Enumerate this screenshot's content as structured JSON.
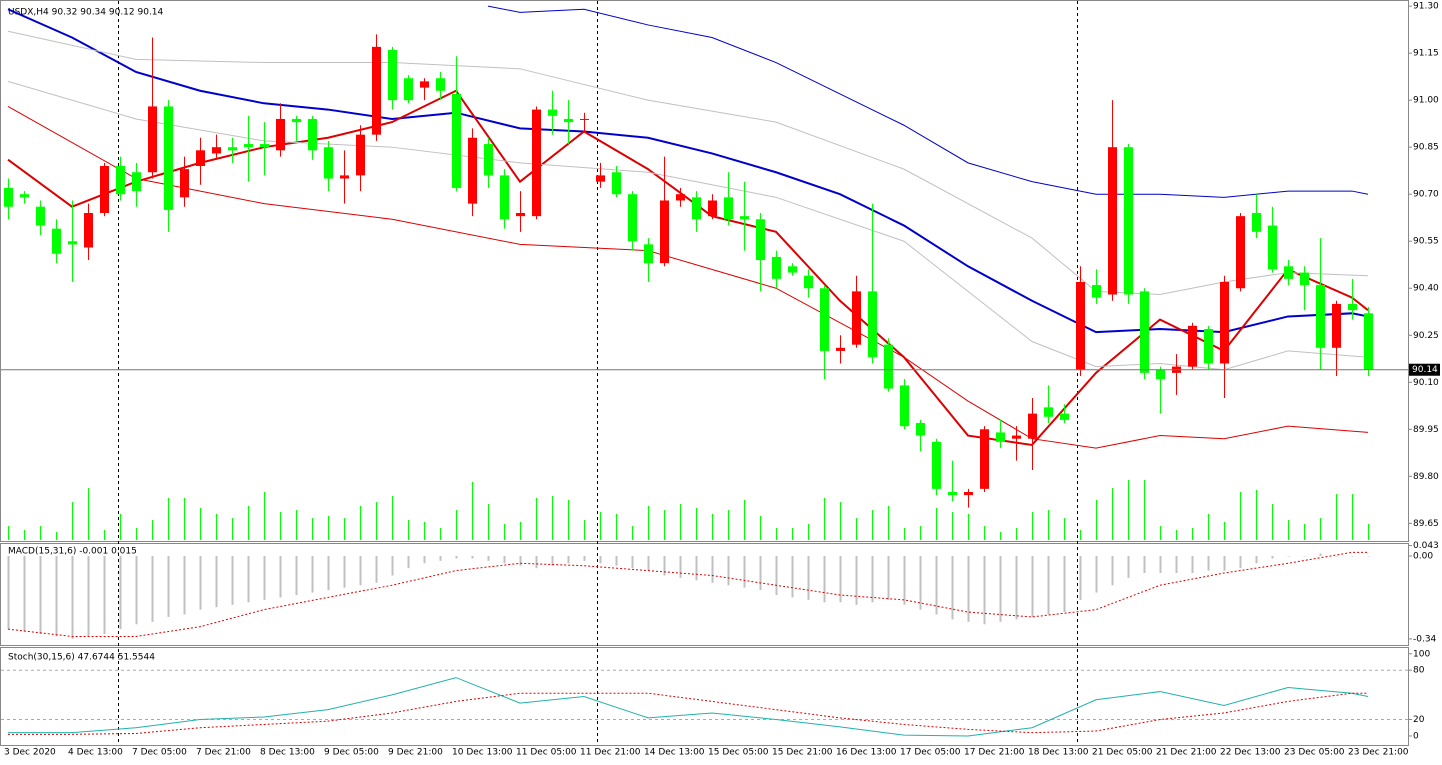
{
  "chart_data": [
    {
      "type": "candlestick",
      "title": "USDX,H4 90.32 90.34 90.12 90.14",
      "categories": [
        "3 Dec 2020",
        null,
        null,
        null,
        "4 Dec 13:00",
        null,
        null,
        null,
        "7 Dec 05:00",
        null,
        null,
        null,
        "7 Dec 21:00",
        null,
        null,
        null,
        "8 Dec 13:00",
        null,
        null,
        null,
        "9 Dec 05:00",
        null,
        null,
        null,
        "9 Dec 21:00",
        null,
        null,
        null,
        "10 Dec 13:00",
        null,
        null,
        null,
        "11 Dec 05:00",
        null,
        null,
        null,
        "11 Dec 21:00",
        null,
        null,
        null,
        "14 Dec 13:00",
        null,
        null,
        null,
        "15 Dec 05:00",
        null,
        null,
        null,
        "15 Dec 21:00",
        null,
        null,
        null,
        "16 Dec 13:00",
        null,
        null,
        null,
        "17 Dec 05:00",
        null,
        null,
        null,
        "17 Dec 21:00",
        null,
        null,
        null,
        "18 Dec 13:00",
        null,
        null,
        null,
        "21 Dec 05:00",
        null,
        null,
        null,
        "21 Dec 21:00",
        null,
        null,
        null,
        "22 Dec 13:00",
        null,
        null,
        null,
        "23 Dec 05:00",
        null,
        null,
        null,
        "23 Dec 21:00",
        null
      ],
      "candles": [
        [
          90.72,
          90.75,
          90.62,
          90.66
        ],
        [
          90.7,
          90.71,
          90.67,
          90.69
        ],
        [
          90.66,
          90.68,
          90.57,
          90.6
        ],
        [
          90.59,
          90.62,
          90.48,
          90.51
        ],
        [
          90.55,
          90.68,
          90.42,
          90.54
        ],
        [
          90.53,
          90.67,
          90.49,
          90.64
        ],
        [
          90.64,
          90.8,
          90.63,
          90.79
        ],
        [
          90.79,
          90.82,
          90.68,
          90.7
        ],
        [
          90.77,
          90.8,
          90.66,
          90.71
        ],
        [
          90.77,
          91.2,
          90.75,
          90.98
        ],
        [
          90.98,
          91.0,
          90.58,
          90.65
        ],
        [
          90.69,
          90.82,
          90.66,
          90.78
        ],
        [
          90.79,
          90.88,
          90.73,
          90.84
        ],
        [
          90.83,
          90.89,
          90.81,
          90.85
        ],
        [
          90.85,
          90.88,
          90.8,
          90.84
        ],
        [
          90.86,
          90.95,
          90.74,
          90.85
        ],
        [
          90.86,
          90.93,
          90.76,
          90.85
        ],
        [
          90.84,
          90.99,
          90.82,
          90.94
        ],
        [
          90.94,
          90.95,
          90.87,
          90.93
        ],
        [
          90.94,
          90.95,
          90.81,
          90.84
        ],
        [
          90.85,
          90.87,
          90.71,
          90.75
        ],
        [
          90.75,
          90.84,
          90.67,
          90.76
        ],
        [
          90.76,
          90.92,
          90.71,
          90.89
        ],
        [
          90.89,
          91.21,
          90.87,
          91.17
        ],
        [
          91.16,
          91.17,
          90.97,
          91.0
        ],
        [
          91.07,
          91.08,
          90.99,
          91.0
        ],
        [
          91.04,
          91.07,
          91.0,
          91.06
        ],
        [
          91.07,
          91.09,
          91.0,
          91.03
        ],
        [
          91.02,
          91.14,
          90.71,
          90.72
        ],
        [
          90.67,
          90.91,
          90.63,
          90.88
        ],
        [
          90.86,
          90.88,
          90.72,
          90.76
        ],
        [
          90.76,
          90.78,
          90.59,
          90.62
        ],
        [
          90.63,
          90.71,
          90.58,
          90.64
        ],
        [
          90.63,
          90.98,
          90.62,
          90.97
        ],
        [
          90.97,
          91.03,
          90.89,
          90.95
        ],
        [
          90.94,
          91.0,
          90.86,
          90.93
        ],
        [
          90.94,
          90.96,
          90.9,
          90.94
        ],
        [
          90.74,
          90.8,
          90.72,
          90.76
        ],
        [
          90.77,
          90.79,
          90.69,
          90.7
        ],
        [
          90.7,
          90.71,
          90.52,
          90.55
        ],
        [
          90.54,
          90.56,
          90.42,
          90.48
        ],
        [
          90.48,
          90.82,
          90.47,
          90.68
        ],
        [
          90.68,
          90.72,
          90.66,
          90.7
        ],
        [
          90.69,
          90.71,
          90.58,
          90.62
        ],
        [
          90.63,
          90.7,
          90.62,
          90.68
        ],
        [
          90.69,
          90.77,
          90.6,
          90.62
        ],
        [
          90.63,
          90.74,
          90.52,
          90.62
        ],
        [
          90.62,
          90.64,
          90.39,
          90.49
        ],
        [
          90.5,
          90.52,
          90.4,
          90.43
        ],
        [
          90.47,
          90.48,
          90.44,
          90.45
        ],
        [
          90.44,
          90.46,
          90.37,
          90.4
        ],
        [
          90.4,
          90.41,
          90.11,
          90.2
        ],
        [
          90.2,
          90.25,
          90.16,
          90.21
        ],
        [
          90.22,
          90.44,
          90.21,
          90.39
        ],
        [
          90.39,
          90.67,
          90.16,
          90.18
        ],
        [
          90.22,
          90.24,
          90.07,
          90.08
        ],
        [
          90.09,
          90.11,
          89.95,
          89.96
        ],
        [
          89.97,
          89.98,
          89.88,
          89.93
        ],
        [
          89.91,
          89.92,
          89.74,
          89.76
        ],
        [
          89.75,
          89.85,
          89.72,
          89.74
        ],
        [
          89.74,
          89.76,
          89.7,
          89.75
        ],
        [
          89.76,
          89.96,
          89.75,
          89.95
        ],
        [
          89.94,
          89.98,
          89.89,
          89.91
        ],
        [
          89.92,
          89.96,
          89.85,
          89.93
        ],
        [
          89.92,
          90.05,
          89.82,
          90.0
        ],
        [
          90.02,
          90.09,
          89.97,
          89.99
        ],
        [
          90.0,
          90.03,
          89.97,
          89.98
        ],
        [
          90.14,
          90.47,
          90.12,
          90.42
        ],
        [
          90.41,
          90.46,
          90.35,
          90.37
        ],
        [
          90.38,
          91.0,
          90.36,
          90.85
        ],
        [
          90.85,
          90.86,
          90.35,
          90.38
        ],
        [
          90.39,
          90.4,
          90.11,
          90.13
        ],
        [
          90.14,
          90.15,
          90.0,
          90.11
        ],
        [
          90.13,
          90.19,
          90.06,
          90.15
        ],
        [
          90.15,
          90.29,
          90.14,
          90.28
        ],
        [
          90.27,
          90.28,
          90.14,
          90.16
        ],
        [
          90.16,
          90.44,
          90.05,
          90.42
        ],
        [
          90.4,
          90.64,
          90.39,
          90.63
        ],
        [
          90.64,
          90.7,
          90.56,
          90.58
        ],
        [
          90.6,
          90.66,
          90.45,
          90.46
        ],
        [
          90.47,
          90.49,
          90.41,
          90.43
        ],
        [
          90.45,
          90.47,
          90.33,
          90.41
        ],
        [
          90.41,
          90.56,
          90.14,
          90.21
        ],
        [
          90.21,
          90.36,
          90.12,
          90.35
        ],
        [
          90.35,
          90.43,
          90.3,
          90.33
        ],
        [
          90.32,
          90.34,
          90.12,
          90.14
        ]
      ],
      "up_color": "#ff0000",
      "down_color": "#00ff00",
      "volume": [
        14,
        10,
        14,
        8,
        38,
        52,
        10,
        26,
        12,
        20,
        42,
        42,
        32,
        26,
        22,
        34,
        48,
        28,
        30,
        22,
        24,
        22,
        34,
        38,
        44,
        20,
        18,
        12,
        30,
        58,
        36,
        16,
        18,
        42,
        44,
        40,
        20,
        28,
        26,
        14,
        34,
        30,
        36,
        32,
        26,
        30,
        40,
        24,
        12,
        12,
        16,
        42,
        38,
        22,
        30,
        34,
        12,
        14,
        32,
        28,
        26,
        14,
        8,
        12,
        28,
        30,
        22,
        10,
        40,
        52,
        60,
        60,
        14,
        10,
        12,
        26,
        18,
        48,
        50,
        36,
        20,
        16,
        22,
        46,
        46,
        16
      ],
      "volume_color": "#00ff00",
      "overlays": [
        {
          "color": "#0000cc",
          "x": [
            0,
            4,
            8,
            12,
            16,
            20,
            24,
            28,
            32,
            36,
            40,
            44,
            48,
            52,
            56,
            60,
            64,
            68,
            72,
            76,
            80,
            84,
            85
          ],
          "values": [
            91.29,
            91.2,
            91.09,
            91.03,
            90.99,
            90.97,
            90.94,
            90.96,
            90.91,
            90.9,
            90.88,
            90.83,
            90.77,
            90.7,
            90.6,
            90.47,
            90.36,
            90.26,
            90.27,
            90.26,
            90.31,
            90.32,
            90.31
          ]
        },
        {
          "color": "#dd0000",
          "x": [
            0,
            4,
            8,
            12,
            16,
            20,
            24,
            28,
            32,
            36,
            40,
            44,
            48,
            52,
            56,
            60,
            64,
            68,
            72,
            76,
            80,
            84,
            85
          ],
          "values": [
            90.81,
            90.66,
            90.74,
            90.8,
            90.85,
            90.88,
            90.93,
            91.03,
            90.74,
            90.9,
            90.78,
            90.63,
            90.58,
            90.36,
            90.18,
            89.93,
            89.9,
            90.13,
            90.3,
            90.2,
            90.46,
            90.37,
            90.33
          ]
        },
        {
          "color": "#0000cc",
          "x": [
            30,
            32,
            36,
            40,
            44,
            48,
            52,
            56,
            60,
            64,
            68,
            72,
            76,
            80,
            84,
            85
          ],
          "values": [
            91.3,
            91.28,
            91.29,
            91.24,
            91.2,
            91.12,
            91.02,
            90.92,
            90.8,
            90.74,
            90.7,
            90.7,
            90.69,
            90.71,
            90.71,
            90.7
          ]
        },
        {
          "color": "#c0c0c0",
          "x": [
            0,
            8,
            16,
            24,
            32,
            40,
            48,
            56,
            64,
            68,
            72,
            76,
            80,
            85
          ],
          "values": [
            91.22,
            91.13,
            91.12,
            91.12,
            91.1,
            91.0,
            90.93,
            90.78,
            90.56,
            90.39,
            90.38,
            90.42,
            90.45,
            90.44
          ]
        },
        {
          "color": "#c0c0c0",
          "x": [
            0,
            8,
            16,
            24,
            32,
            40,
            48,
            56,
            64,
            68,
            72,
            76,
            80,
            85
          ],
          "values": [
            91.06,
            90.94,
            90.87,
            90.85,
            90.8,
            90.77,
            90.69,
            90.55,
            90.23,
            90.15,
            90.16,
            90.14,
            90.2,
            90.18
          ]
        },
        {
          "color": "#dd0000",
          "x": [
            0,
            8,
            16,
            24,
            32,
            40,
            48,
            56,
            60,
            64,
            68,
            72,
            76,
            80,
            85
          ],
          "values": [
            90.98,
            90.75,
            90.67,
            90.62,
            90.54,
            90.52,
            90.4,
            90.18,
            90.04,
            89.92,
            89.89,
            89.93,
            89.92,
            89.96,
            89.94
          ]
        }
      ],
      "ylim": [
        89.6,
        91.31
      ],
      "yticks": [
        {
          "value": 91.3,
          "label": "91.30"
        },
        91.15,
        {
          "value": 91.0,
          "label": "91.00"
        },
        90.85,
        {
          "value": 90.7,
          "label": "90.70"
        },
        90.55,
        {
          "value": 90.4,
          "label": "90.40"
        },
        90.25,
        {
          "value": 90.1,
          "label": "90.10"
        },
        89.95,
        {
          "value": 89.8,
          "label": "89.80"
        },
        89.65
      ]
    },
    {
      "type": "macd",
      "title": "MACD(15,31,6) -0.001 0.015",
      "color": "#c0c0c0",
      "values": [
        -0.3,
        -0.31,
        -0.32,
        -0.33,
        -0.34,
        -0.33,
        -0.32,
        -0.3,
        -0.28,
        -0.27,
        -0.25,
        -0.24,
        -0.22,
        -0.21,
        -0.2,
        -0.19,
        -0.18,
        -0.17,
        -0.16,
        -0.15,
        -0.14,
        -0.13,
        -0.12,
        -0.11,
        -0.08,
        -0.05,
        -0.03,
        -0.02,
        -0.01,
        -0.01,
        -0.02,
        -0.03,
        -0.04,
        -0.05,
        -0.04,
        -0.03,
        -0.02,
        -0.03,
        -0.04,
        -0.05,
        -0.06,
        -0.08,
        -0.09,
        -0.1,
        -0.11,
        -0.12,
        -0.13,
        -0.14,
        -0.16,
        -0.17,
        -0.18,
        -0.19,
        -0.19,
        -0.2,
        -0.19,
        -0.18,
        -0.2,
        -0.22,
        -0.24,
        -0.26,
        -0.27,
        -0.28,
        -0.27,
        -0.26,
        -0.25,
        -0.24,
        -0.23,
        -0.18,
        -0.15,
        -0.12,
        -0.09,
        -0.07,
        -0.07,
        -0.07,
        -0.07,
        -0.06,
        -0.06,
        -0.05,
        -0.03,
        -0.01,
        0.0,
        0.0,
        0.01,
        0.0,
        0.0,
        -0.001
      ],
      "signal": {
        "color": "#dd0000",
        "x": [
          0,
          4,
          8,
          12,
          16,
          20,
          24,
          28,
          32,
          36,
          40,
          44,
          48,
          52,
          56,
          60,
          64,
          68,
          72,
          76,
          80,
          84,
          85
        ],
        "values": [
          -0.3,
          -0.33,
          -0.33,
          -0.29,
          -0.22,
          -0.17,
          -0.12,
          -0.06,
          -0.03,
          -0.04,
          -0.06,
          -0.08,
          -0.12,
          -0.16,
          -0.18,
          -0.23,
          -0.25,
          -0.22,
          -0.12,
          -0.07,
          -0.03,
          0.015,
          0.015
        ]
      },
      "ylim": [
        -0.365,
        0.045
      ],
      "yticks": [
        0.043,
        {
          "value": 0,
          "label": "0.00"
        },
        -0.34
      ]
    },
    {
      "type": "stochastic",
      "title": "Stoch(30,15,6) 47.6744 51.5544",
      "main": {
        "color": "#20b2aa",
        "x": [
          0,
          4,
          8,
          12,
          16,
          20,
          24,
          28,
          32,
          36,
          40,
          44,
          48,
          52,
          56,
          60,
          64,
          68,
          72,
          76,
          80,
          84,
          85
        ],
        "values": [
          4,
          4,
          10,
          20,
          23,
          32,
          50,
          71,
          40,
          48,
          22,
          28,
          20,
          11,
          1,
          0,
          10,
          44,
          54,
          37,
          59,
          52,
          48
        ]
      },
      "signal": {
        "color": "#dd0000",
        "x": [
          0,
          4,
          8,
          12,
          16,
          20,
          24,
          28,
          32,
          36,
          40,
          44,
          48,
          52,
          56,
          60,
          64,
          68,
          72,
          76,
          80,
          84,
          85
        ],
        "values": [
          2,
          2,
          3,
          10,
          14,
          18,
          28,
          42,
          52,
          52,
          52,
          42,
          32,
          22,
          14,
          8,
          4,
          6,
          20,
          28,
          42,
          52,
          52
        ]
      },
      "levels": [
        80,
        20
      ],
      "ylim": [
        -11,
        107
      ],
      "yticks": [
        100,
        80,
        20,
        0
      ]
    }
  ]
}
